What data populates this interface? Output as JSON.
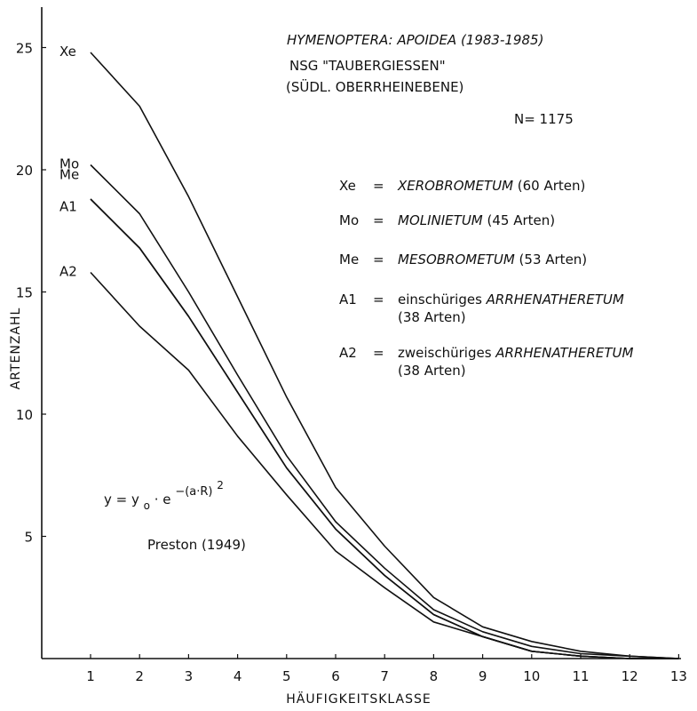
{
  "chart_data": {
    "type": "line",
    "title": "HYMENOPTERA: APOIDEA (1983-1985)",
    "subtitle_lines": [
      "NSG \"TAUBERGIESSEN\"",
      "(SÜDL. OBERRHEINEBENE)"
    ],
    "n_label": "N= 1175",
    "xlabel": "HÄUFIGKEITSKLASSE",
    "ylabel": "ARTENZAHL",
    "x": [
      1,
      2,
      3,
      4,
      5,
      6,
      7,
      8,
      9,
      10,
      11,
      12,
      13
    ],
    "x_ticks": [
      1,
      2,
      3,
      4,
      5,
      6,
      7,
      8,
      9,
      10,
      11,
      12,
      13
    ],
    "y_ticks": [
      5,
      10,
      15,
      20,
      25
    ],
    "xlim": [
      0,
      13.6
    ],
    "ylim": [
      0,
      26.5
    ],
    "grid": false,
    "series": [
      {
        "name": "Xe",
        "values": [
          24.8,
          22.6,
          18.9,
          14.8,
          10.7,
          7.0,
          4.6,
          2.5,
          1.3,
          0.7,
          0.3,
          0.1,
          0.0
        ]
      },
      {
        "name": "Mo",
        "values": [
          20.2,
          18.2,
          15.0,
          11.6,
          8.3,
          5.6,
          3.7,
          2.0,
          1.1,
          0.5,
          0.2,
          0.1,
          0.0
        ]
      },
      {
        "name": "Me",
        "values": [
          18.8,
          16.8,
          14.0,
          10.9,
          7.8,
          5.3,
          3.4,
          1.8,
          0.9,
          0.3,
          0.1,
          0.0,
          0.0
        ]
      },
      {
        "name": "A1",
        "values": [
          18.8,
          16.8,
          14.0,
          10.9,
          7.8,
          5.3,
          3.4,
          1.8,
          0.9,
          0.3,
          0.1,
          0.0,
          0.0
        ]
      },
      {
        "name": "A2",
        "values": [
          15.8,
          13.6,
          11.8,
          9.1,
          6.7,
          4.4,
          2.9,
          1.5,
          0.9,
          0.3,
          0.1,
          0.0,
          0.0
        ]
      }
    ],
    "legend": [
      {
        "code": "Xe",
        "eq": "=",
        "prefix": "",
        "name": "XEROBROMETUM",
        "suffix": "(60 Arten)",
        "line2": ""
      },
      {
        "code": "Mo",
        "eq": "=",
        "prefix": "",
        "name": "MOLINIETUM",
        "suffix": "(45 Arten)",
        "line2": ""
      },
      {
        "code": "Me",
        "eq": "=",
        "prefix": "",
        "name": "MESOBROMETUM",
        "suffix": "(53 Arten)",
        "line2": ""
      },
      {
        "code": "A1",
        "eq": "=",
        "prefix": "einschüriges",
        "name": "ARRHENATHERETUM",
        "suffix": "",
        "line2": "(38 Arten)"
      },
      {
        "code": "A2",
        "eq": "=",
        "prefix": "zweischüriges",
        "name": "ARRHENATHERETUM",
        "suffix": "",
        "line2": "(38 Arten)"
      }
    ],
    "formula": {
      "lhs": "y = y",
      "sub": "o",
      "mid": "· e",
      "exp": "−(a·R)",
      "sq": "2"
    },
    "citation": "Preston (1949)"
  }
}
